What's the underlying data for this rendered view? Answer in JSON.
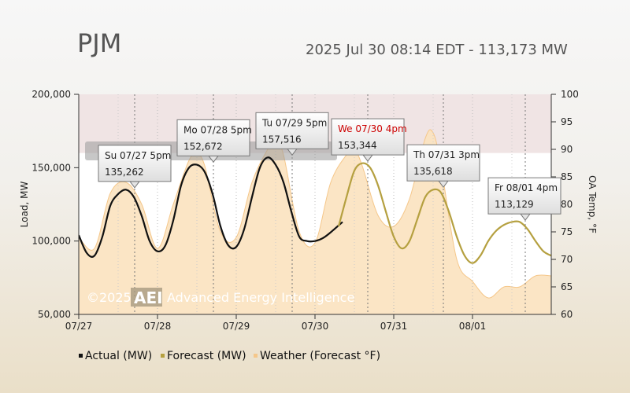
{
  "header": {
    "title": "PJM",
    "subtitle": "2025 Jul 30 08:14 EDT - 113,173 MW"
  },
  "watermark": {
    "copyright": "©2025",
    "logo": "AEI",
    "company": "Advanced Energy Intelligence"
  },
  "colors": {
    "actual": "#111111",
    "forecast": "#b5a040",
    "weather": "#f5c78a",
    "weather_fill": "#fbe2bf",
    "highlight_band": "#f0e4e4",
    "tooltip_red": "#cc0000"
  },
  "chart_data": {
    "type": "line",
    "xlabel": "",
    "ylabel": "Load, MW",
    "y2label": "OA Temp, °F",
    "ylim": [
      50000,
      200000
    ],
    "y2lim": [
      60,
      100
    ],
    "xlim": [
      0,
      6
    ],
    "yticks": [
      50000,
      100000,
      150000,
      200000
    ],
    "ytick_labels": [
      "50,000",
      "100,000",
      "150,000",
      "200,000"
    ],
    "y2ticks": [
      60,
      65,
      70,
      75,
      80,
      85,
      90,
      95,
      100
    ],
    "x_tick_labels": [
      "07/27",
      "07/28",
      "07/29",
      "07/30",
      "07/31",
      "08/01"
    ],
    "legend_position": "bottom",
    "band": {
      "from": 160000,
      "to": 200000
    },
    "series": [
      {
        "name": "Actual (MW)",
        "x": [
          0.0,
          0.1,
          0.2,
          0.3,
          0.4,
          0.5,
          0.6,
          0.7,
          0.8,
          0.9,
          1.0,
          1.1,
          1.2,
          1.3,
          1.4,
          1.5,
          1.6,
          1.7,
          1.8,
          1.9,
          2.0,
          2.1,
          2.2,
          2.3,
          2.4,
          2.5,
          2.6,
          2.7,
          2.8,
          2.9,
          3.0,
          3.1,
          3.2,
          3.35
        ],
        "y": [
          104000,
          92000,
          90000,
          103000,
          124000,
          132000,
          135000,
          130000,
          117000,
          100000,
          93000,
          97000,
          114000,
          138000,
          150000,
          152000,
          147000,
          132000,
          110000,
          97000,
          96000,
          108000,
          130000,
          150000,
          157000,
          152000,
          140000,
          120000,
          103000,
          100000,
          100000,
          102000,
          106000,
          113000
        ]
      },
      {
        "name": "Forecast (MW)",
        "x": [
          3.3,
          3.4,
          3.5,
          3.6,
          3.7,
          3.8,
          3.9,
          4.0,
          4.1,
          4.2,
          4.3,
          4.4,
          4.5,
          4.6,
          4.7,
          4.8,
          4.9,
          5.0,
          5.1,
          5.2,
          5.3,
          5.4,
          5.5,
          5.6,
          5.7,
          5.8,
          5.9,
          6.0
        ],
        "y": [
          110000,
          130000,
          148000,
          153000,
          150000,
          138000,
          120000,
          103000,
          95000,
          100000,
          115000,
          130000,
          135000,
          133000,
          120000,
          103000,
          90000,
          85000,
          90000,
          100000,
          107000,
          111000,
          113000,
          113000,
          108000,
          100000,
          93000,
          90000
        ]
      },
      {
        "name": "Weather (Forecast °F)",
        "x": [
          0.0,
          0.2,
          0.4,
          0.6,
          0.8,
          1.0,
          1.2,
          1.4,
          1.5,
          1.6,
          1.8,
          2.0,
          2.2,
          2.4,
          2.5,
          2.6,
          2.8,
          3.0,
          3.2,
          3.4,
          3.5,
          3.6,
          3.8,
          4.0,
          4.2,
          4.4,
          4.5,
          4.6,
          4.8,
          5.0,
          5.2,
          5.4,
          5.6,
          5.8,
          6.0
        ],
        "y": [
          74,
          72,
          82,
          84,
          80,
          72,
          80,
          88,
          89,
          87,
          75,
          74,
          84,
          90,
          91,
          89,
          75,
          73,
          84,
          89,
          90,
          87,
          78,
          76,
          81,
          92,
          93,
          87,
          70,
          66,
          63,
          65,
          65,
          67,
          67
        ]
      }
    ],
    "annotations": [
      {
        "x": 0.71,
        "y": 135262,
        "date": "Su 07/27 5pm",
        "value": "135,262",
        "highlight": false
      },
      {
        "x": 1.71,
        "y": 152672,
        "date": "Mo 07/28 5pm",
        "value": "152,672",
        "highlight": false
      },
      {
        "x": 2.71,
        "y": 157516,
        "date": "Tu 07/29 5pm",
        "value": "157,516",
        "highlight": false
      },
      {
        "x": 3.67,
        "y": 153344,
        "date": "We 07/30 4pm",
        "value": "153,344",
        "highlight": true
      },
      {
        "x": 4.63,
        "y": 135618,
        "date": "Th 07/31 3pm",
        "value": "135,618",
        "highlight": false
      },
      {
        "x": 5.67,
        "y": 113129,
        "date": "Fr 08/01 4pm",
        "value": "113,129",
        "highlight": false
      }
    ]
  }
}
